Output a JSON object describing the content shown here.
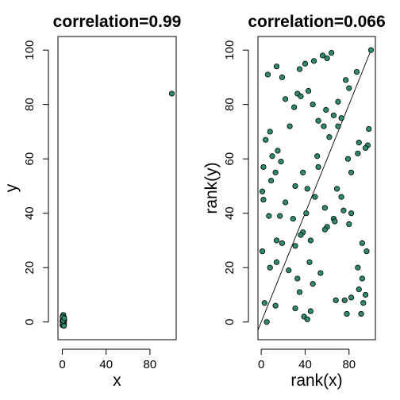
{
  "chart_data": [
    {
      "type": "scatter",
      "title": "correlation=0.99",
      "xlabel": "x",
      "ylabel": "y",
      "xlim": [
        -4,
        104
      ],
      "ylim": [
        -6.5,
        105
      ],
      "xticks": [
        0,
        40,
        80
      ],
      "yticks": [
        0,
        20,
        40,
        60,
        80,
        100
      ],
      "point_color": "#2e8b6a",
      "series": [
        {
          "points": [
            [
              100,
              84
            ],
            [
              0.2,
              -1.2
            ],
            [
              0.5,
              -0.8
            ],
            [
              0.8,
              -0.4
            ],
            [
              1.1,
              0.0
            ],
            [
              1.4,
              0.4
            ],
            [
              0.3,
              0.8
            ],
            [
              0.7,
              1.2
            ],
            [
              1.0,
              1.6
            ],
            [
              1.3,
              2.0
            ],
            [
              0.6,
              2.3
            ],
            [
              0.1,
              0.2
            ],
            [
              1.6,
              -0.6
            ],
            [
              1.8,
              0.7
            ],
            [
              0.4,
              -0.2
            ],
            [
              1.2,
              1.0
            ],
            [
              0.9,
              2.6
            ],
            [
              0.2,
              1.9
            ],
            [
              1.5,
              -1.4
            ],
            [
              0.8,
              0.5
            ],
            [
              1.7,
              1.4
            ]
          ]
        }
      ]
    },
    {
      "type": "scatter",
      "title": "correlation=0.066",
      "xlabel": "rank(x)",
      "ylabel": "rank(y)",
      "xlim": [
        -3,
        104
      ],
      "ylim": [
        -6.5,
        105
      ],
      "xticks": [
        0,
        40,
        80
      ],
      "yticks": [
        0,
        20,
        40,
        60,
        80,
        100
      ],
      "reference_line": [
        [
          -3,
          -3
        ],
        [
          100,
          100
        ]
      ],
      "point_color": "#2e8b6a",
      "series": [
        {
          "points": [
            [
              100,
              100
            ],
            [
              64,
              99
            ],
            [
              56,
              98
            ],
            [
              60,
              97
            ],
            [
              48,
              96
            ],
            [
              40,
              95
            ],
            [
              14,
              94
            ],
            [
              35,
              93
            ],
            [
              87,
              92
            ],
            [
              6,
              91
            ],
            [
              19,
              90
            ],
            [
              77,
              89
            ],
            [
              80,
              86
            ],
            [
              43,
              85
            ],
            [
              33,
              84
            ],
            [
              22,
              82
            ],
            [
              36,
              83
            ],
            [
              70,
              81
            ],
            [
              47,
              80
            ],
            [
              30,
              79
            ],
            [
              59,
              78
            ],
            [
              66,
              76
            ],
            [
              73,
              75
            ],
            [
              52,
              74
            ],
            [
              26,
              72
            ],
            [
              57,
              72
            ],
            [
              70,
              72
            ],
            [
              98,
              71
            ],
            [
              8,
              70
            ],
            [
              62,
              68
            ],
            [
              4,
              67
            ],
            [
              89,
              66
            ],
            [
              97,
              65
            ],
            [
              95,
              64
            ],
            [
              15,
              63
            ],
            [
              88,
              62
            ],
            [
              10,
              61
            ],
            [
              51,
              61
            ],
            [
              79,
              60
            ],
            [
              18,
              59
            ],
            [
              52,
              57
            ],
            [
              2,
              57
            ],
            [
              13,
              55
            ],
            [
              38,
              55
            ],
            [
              82,
              55
            ],
            [
              9,
              52
            ],
            [
              31,
              50
            ],
            [
              42,
              49
            ],
            [
              69,
              49
            ],
            [
              1,
              48
            ],
            [
              49,
              46
            ],
            [
              73,
              46
            ],
            [
              2,
              45
            ],
            [
              22,
              44
            ],
            [
              58,
              42
            ],
            [
              75,
              41
            ],
            [
              82,
              40
            ],
            [
              41,
              40
            ],
            [
              7,
              39
            ],
            [
              17,
              39
            ],
            [
              29,
              38
            ],
            [
              66,
              38
            ],
            [
              67,
              37
            ],
            [
              80,
              36
            ],
            [
              60,
              35
            ],
            [
              58,
              34
            ],
            [
              38,
              33
            ],
            [
              36,
              32
            ],
            [
              45,
              30
            ],
            [
              14,
              30
            ],
            [
              19,
              29
            ],
            [
              92,
              29
            ],
            [
              31,
              28
            ],
            [
              1,
              26
            ],
            [
              96,
              26
            ],
            [
              14,
              22
            ],
            [
              44,
              22
            ],
            [
              8,
              20
            ],
            [
              88,
              20
            ],
            [
              25,
              19
            ],
            [
              54,
              18
            ],
            [
              33,
              16
            ],
            [
              92,
              16
            ],
            [
              89,
              12
            ],
            [
              35,
              11
            ],
            [
              95,
              10
            ],
            [
              82,
              9
            ],
            [
              76,
              8
            ],
            [
              68,
              8
            ],
            [
              93,
              7
            ],
            [
              3,
              7
            ],
            [
              13,
              6
            ],
            [
              31,
              5
            ],
            [
              45,
              4
            ],
            [
              78,
              3
            ],
            [
              91,
              3
            ],
            [
              39,
              2
            ],
            [
              42,
              1
            ],
            [
              5,
              0
            ],
            [
              47,
              14
            ]
          ]
        }
      ]
    }
  ]
}
